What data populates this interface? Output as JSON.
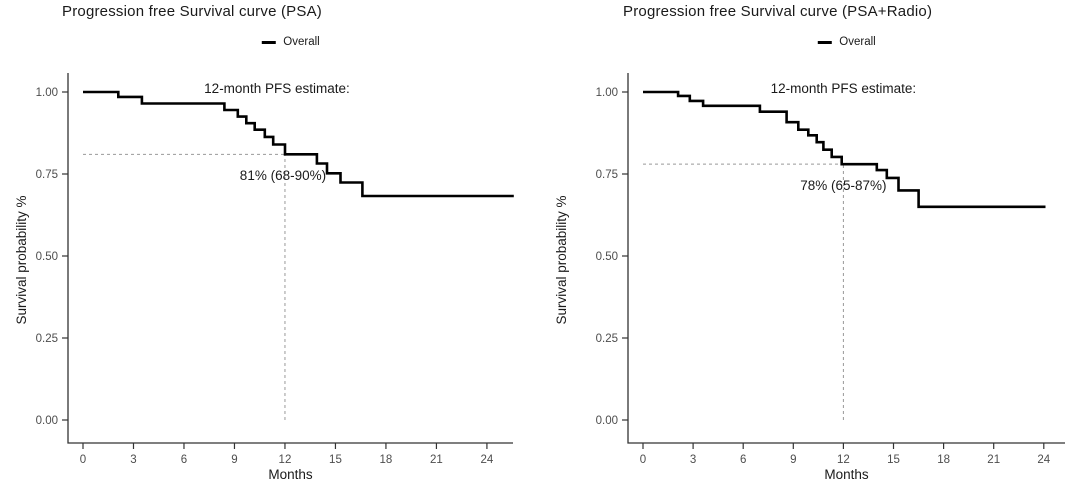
{
  "colors": {
    "curve": "#000000",
    "reference_dash": "#999999",
    "axis_line": "#333333",
    "tick_label": "#4d4d4d",
    "text": "#1a1a1a",
    "background": "#ffffff"
  },
  "chart_data": [
    {
      "type": "line",
      "subtype": "kaplan-meier-step",
      "title": "Progression free Survival curve (PSA)",
      "legend": {
        "label": "Overall",
        "position": "top-center"
      },
      "xlabel": "Months",
      "ylabel": "Survival probability %",
      "xticks": [
        0,
        3,
        6,
        9,
        12,
        15,
        18,
        21,
        24
      ],
      "ytick_labels": [
        "0.00",
        "0.25",
        "0.50",
        "0.75",
        "1.00"
      ],
      "xlim": [
        -0.9,
        25.6
      ],
      "ylim": [
        -0.07,
        1.06
      ],
      "grid": false,
      "annotations": {
        "heading": "12-month PFS estimate:",
        "value": "81% (68-90%)"
      },
      "reference_lines": {
        "month": 12,
        "survival": 0.81
      },
      "series": [
        {
          "name": "Overall",
          "color": "#000000",
          "points": [
            [
              0,
              1.0
            ],
            [
              2.1,
              1.0
            ],
            [
              2.1,
              0.985
            ],
            [
              3.5,
              0.985
            ],
            [
              3.5,
              0.965
            ],
            [
              8.4,
              0.965
            ],
            [
              8.4,
              0.945
            ],
            [
              9.2,
              0.945
            ],
            [
              9.2,
              0.925
            ],
            [
              9.7,
              0.925
            ],
            [
              9.7,
              0.905
            ],
            [
              10.2,
              0.905
            ],
            [
              10.2,
              0.885
            ],
            [
              10.8,
              0.885
            ],
            [
              10.8,
              0.863
            ],
            [
              11.3,
              0.863
            ],
            [
              11.3,
              0.84
            ],
            [
              12,
              0.84
            ],
            [
              12,
              0.81
            ],
            [
              13.9,
              0.81
            ],
            [
              13.9,
              0.782
            ],
            [
              14.5,
              0.782
            ],
            [
              14.5,
              0.752
            ],
            [
              15.3,
              0.752
            ],
            [
              15.3,
              0.724
            ],
            [
              16.6,
              0.724
            ],
            [
              16.6,
              0.683
            ],
            [
              25.6,
              0.683
            ]
          ]
        }
      ]
    },
    {
      "type": "line",
      "subtype": "kaplan-meier-step",
      "title": "Progression free Survival curve (PSA+Radio)",
      "legend": {
        "label": "Overall",
        "position": "top-center"
      },
      "xlabel": "Months",
      "ylabel": "Survival probability %",
      "xticks": [
        0,
        3,
        6,
        9,
        12,
        15,
        18,
        21,
        24
      ],
      "ytick_labels": [
        "0.00",
        "0.25",
        "0.50",
        "0.75",
        "1.00"
      ],
      "xlim": [
        -0.9,
        25.3
      ],
      "ylim": [
        -0.07,
        1.06
      ],
      "grid": false,
      "annotations": {
        "heading": "12-month PFS estimate:",
        "value": "78% (65-87%)"
      },
      "reference_lines": {
        "month": 12,
        "survival": 0.78
      },
      "series": [
        {
          "name": "Overall",
          "color": "#000000",
          "points": [
            [
              0,
              1.0
            ],
            [
              2.1,
              1.0
            ],
            [
              2.1,
              0.988
            ],
            [
              2.8,
              0.988
            ],
            [
              2.8,
              0.973
            ],
            [
              3.6,
              0.973
            ],
            [
              3.6,
              0.958
            ],
            [
              7.0,
              0.958
            ],
            [
              7.0,
              0.94
            ],
            [
              8.6,
              0.94
            ],
            [
              8.6,
              0.908
            ],
            [
              9.3,
              0.908
            ],
            [
              9.3,
              0.885
            ],
            [
              9.9,
              0.885
            ],
            [
              9.9,
              0.868
            ],
            [
              10.4,
              0.868
            ],
            [
              10.4,
              0.847
            ],
            [
              10.8,
              0.847
            ],
            [
              10.8,
              0.824
            ],
            [
              11.3,
              0.824
            ],
            [
              11.3,
              0.802
            ],
            [
              11.9,
              0.802
            ],
            [
              11.9,
              0.78
            ],
            [
              14.0,
              0.78
            ],
            [
              14.0,
              0.762
            ],
            [
              14.6,
              0.762
            ],
            [
              14.6,
              0.738
            ],
            [
              15.3,
              0.738
            ],
            [
              15.3,
              0.7
            ],
            [
              16.5,
              0.7
            ],
            [
              16.5,
              0.65
            ],
            [
              24.1,
              0.65
            ]
          ]
        }
      ]
    }
  ]
}
